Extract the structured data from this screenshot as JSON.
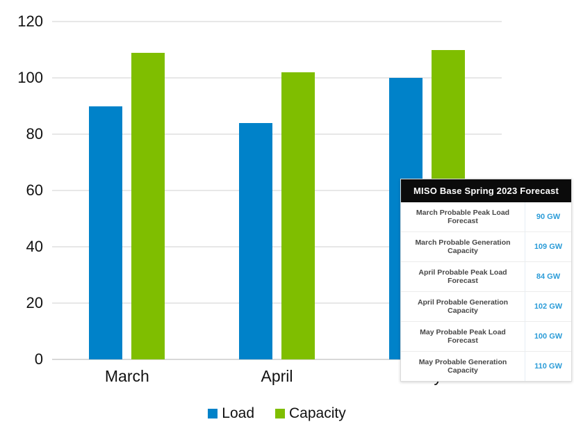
{
  "chart_data": {
    "type": "bar",
    "title": "",
    "xlabel": "",
    "ylabel": "",
    "categories": [
      "March",
      "April",
      "May"
    ],
    "series": [
      {
        "name": "Load",
        "color": "#0082c9",
        "values": [
          90,
          84,
          100
        ]
      },
      {
        "name": "Capacity",
        "color": "#7fbe00",
        "values": [
          109,
          102,
          110
        ]
      }
    ],
    "ylim": [
      0,
      120
    ],
    "yticks": [
      0,
      20,
      40,
      60,
      80,
      100,
      120
    ],
    "grid": true,
    "legend_position": "bottom"
  },
  "table": {
    "title": "MISO Base Spring 2023 Forecast",
    "value_color": "#2b9cd8",
    "rows": [
      {
        "label": "March Probable Peak Load Forecast",
        "value": "90 GW"
      },
      {
        "label": "March Probable Generation Capacity",
        "value": "109 GW"
      },
      {
        "label": "April Probable Peak Load Forecast",
        "value": "84 GW"
      },
      {
        "label": "April Probable Generation Capacity",
        "value": "102 GW"
      },
      {
        "label": "May Probable Peak Load Forecast",
        "value": "100 GW"
      },
      {
        "label": "May Probable Generation Capacity",
        "value": "110 GW"
      }
    ]
  },
  "colors": {
    "load": "#0082c9",
    "capacity": "#7fbe00",
    "gridline": "#e7e7e7",
    "baseline": "#d8d8d8",
    "table_header_bg": "#0b0b0b",
    "table_value_text": "#2b9cd8"
  }
}
